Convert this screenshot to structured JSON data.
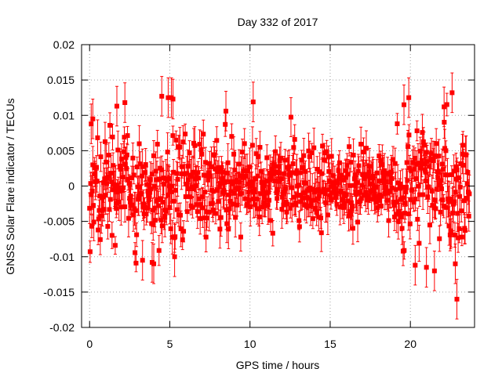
{
  "chart_data": {
    "type": "scatter",
    "title": "Day 332 of 2017",
    "xlabel": "GPS time / hours",
    "ylabel": "GNSS Solar Flare indicator / TECUs",
    "xlim": [
      -0.5,
      24.0
    ],
    "ylim": [
      -0.02,
      0.02
    ],
    "grid": true,
    "grid_style": "dotted",
    "legend": "none",
    "marker": "filled-square",
    "error_bars": true,
    "series_color": "#ff0000",
    "x_ticks": [
      0,
      5,
      10,
      15,
      20
    ],
    "x_tick_labels": [
      "0",
      "5",
      "10",
      "15",
      "20"
    ],
    "y_ticks": [
      -0.02,
      -0.015,
      -0.01,
      -0.005,
      0,
      0.005,
      0.01,
      0.015,
      0.02
    ],
    "y_tick_labels": [
      "-0.02",
      "-0.015",
      "-0.01",
      "-0.005",
      "0",
      "0.005",
      "0.01",
      "0.015",
      "0.02"
    ],
    "series": [
      {
        "x_start": 0.0,
        "x_end": 23.7,
        "x_step": 0.0333,
        "typical_spread": 0.0035,
        "typical_error": 0.002,
        "notable_points": [
          {
            "x": 0.1,
            "y": 0.0088
          },
          {
            "x": 0.2,
            "y": 0.0095
          },
          {
            "x": 1.7,
            "y": 0.0113
          },
          {
            "x": 2.2,
            "y": 0.0118
          },
          {
            "x": 3.3,
            "y": -0.0105
          },
          {
            "x": 3.9,
            "y": -0.0108
          },
          {
            "x": 4.0,
            "y": -0.011
          },
          {
            "x": 4.5,
            "y": 0.0127
          },
          {
            "x": 4.9,
            "y": 0.0125
          },
          {
            "x": 5.1,
            "y": 0.0125
          },
          {
            "x": 5.2,
            "y": 0.0123
          },
          {
            "x": 5.3,
            "y": -0.01
          },
          {
            "x": 8.5,
            "y": 0.0106
          },
          {
            "x": 10.2,
            "y": 0.0119
          },
          {
            "x": 19.6,
            "y": 0.0115
          },
          {
            "x": 19.9,
            "y": 0.0125
          },
          {
            "x": 20.3,
            "y": -0.0112
          },
          {
            "x": 21.0,
            "y": -0.0115
          },
          {
            "x": 21.5,
            "y": -0.012
          },
          {
            "x": 22.1,
            "y": 0.0112
          },
          {
            "x": 22.6,
            "y": 0.0132
          },
          {
            "x": 22.8,
            "y": -0.011
          },
          {
            "x": 22.9,
            "y": -0.016
          }
        ]
      }
    ]
  }
}
